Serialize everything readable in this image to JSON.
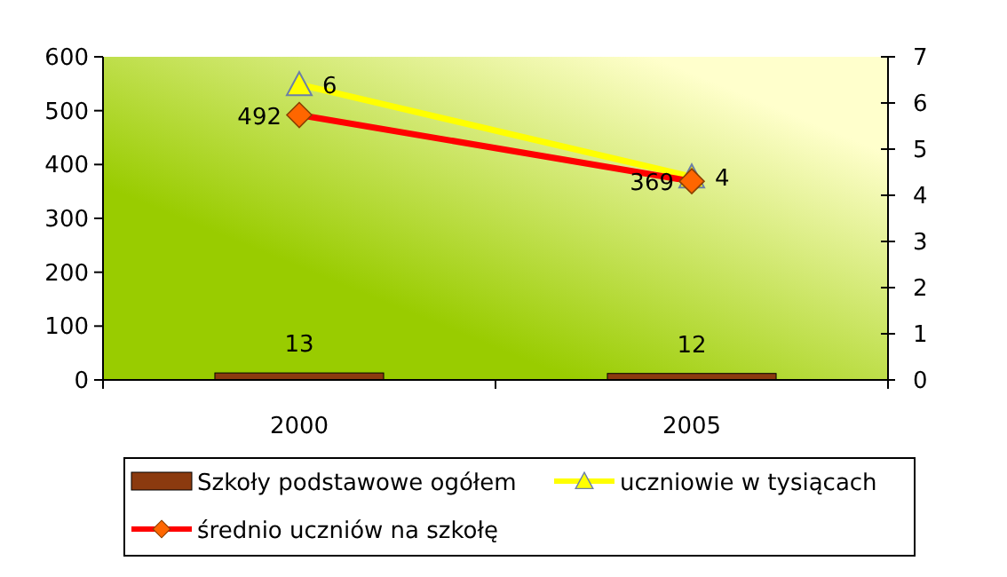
{
  "chart_data": {
    "type": "bar",
    "categories": [
      "2000",
      "2005"
    ],
    "series": [
      {
        "name": "Szkoły podstawowe ogółem",
        "color": "#8b3a0f",
        "values": [
          13,
          12
        ],
        "value_labels": [
          "13",
          "12"
        ]
      },
      {
        "name": "uczniowie w tysiącach",
        "type": "line",
        "axis": "y2",
        "color": "#ffff00",
        "marker": "triangle",
        "values": [
          6.4,
          4.4
        ],
        "value_labels": [
          "6",
          "4"
        ]
      },
      {
        "name": "średnio uczniów na szkołę",
        "type": "line",
        "color": "#ff0000",
        "marker": "diamond",
        "values": [
          492,
          369
        ],
        "value_labels": [
          "492",
          "369"
        ]
      }
    ],
    "ylim": [
      0,
      600
    ],
    "yticks": [
      0,
      100,
      200,
      300,
      400,
      500,
      600
    ],
    "y2lim": [
      0,
      7
    ],
    "y2ticks": [
      0,
      1,
      2,
      3,
      4,
      5,
      6,
      7
    ],
    "grid": false,
    "legend": "bottom"
  }
}
